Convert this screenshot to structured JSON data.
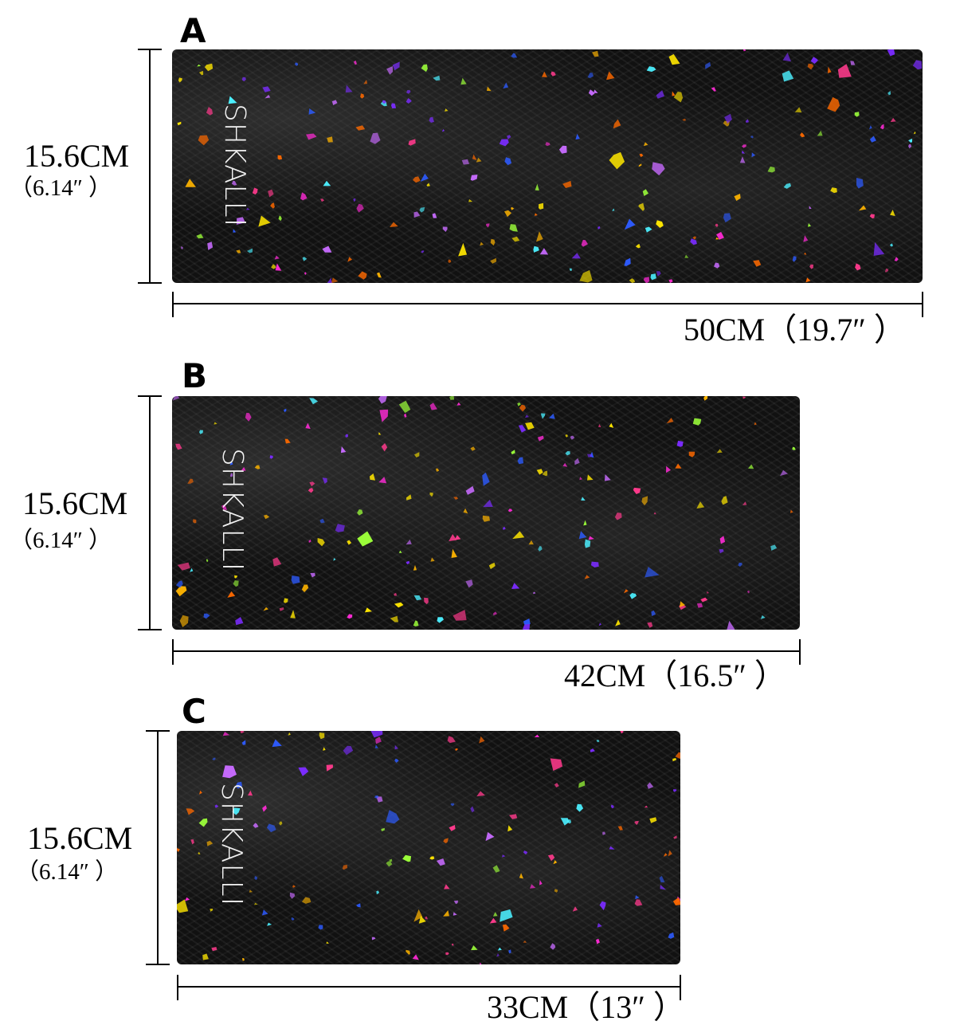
{
  "brand": "SHKALLI",
  "variants": [
    {
      "label": "A",
      "height": "15.6CM",
      "height_in": "（6.14″ ）",
      "width": "50CM（19.7″ ）"
    },
    {
      "label": "B",
      "height": "15.6CM",
      "height_in": "（6.14″ ）",
      "width": "42CM（16.5″ ）"
    },
    {
      "label": "C",
      "height": "15.6CM",
      "height_in": "（6.14″ ）",
      "width": "33CM（13″ ）"
    }
  ],
  "colors": {
    "panel": "#111111",
    "flakes": [
      "#ff2bd6",
      "#ffb400",
      "#ff6a00",
      "#7b2cff",
      "#2d5bff",
      "#9cff3a",
      "#ffe600",
      "#ff3a8c",
      "#c86bff",
      "#4cf0ff"
    ]
  }
}
